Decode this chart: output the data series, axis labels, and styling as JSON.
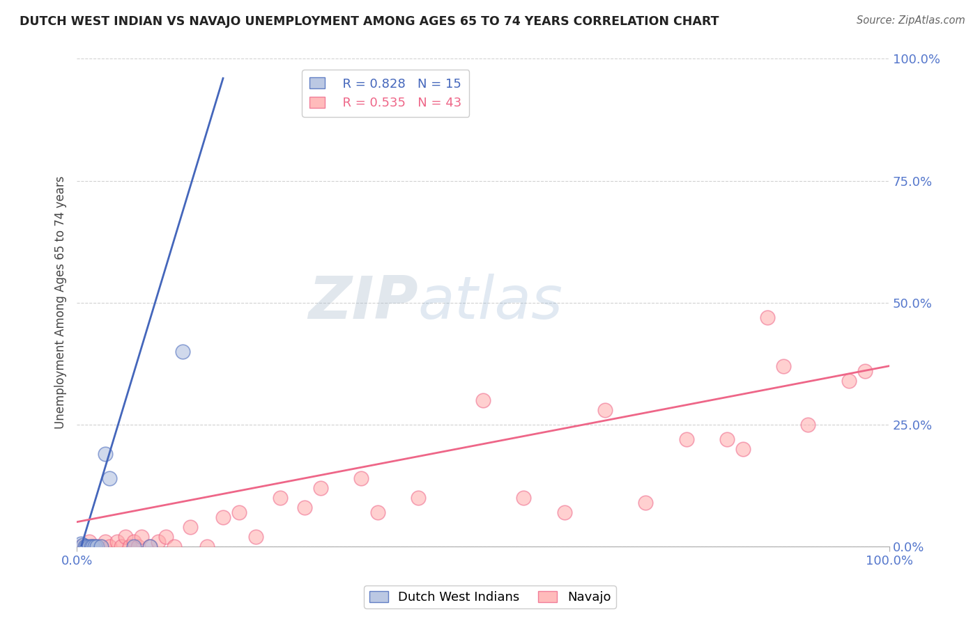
{
  "title": "DUTCH WEST INDIAN VS NAVAJO UNEMPLOYMENT AMONG AGES 65 TO 74 YEARS CORRELATION CHART",
  "source": "Source: ZipAtlas.com",
  "ylabel": "Unemployment Among Ages 65 to 74 years",
  "y_ticks": [
    0.0,
    0.25,
    0.5,
    0.75,
    1.0
  ],
  "y_tick_labels": [
    "0.0%",
    "25.0%",
    "50.0%",
    "75.0%",
    "100.0%"
  ],
  "legend_blue_r": "R = 0.828",
  "legend_blue_n": "N = 15",
  "legend_pink_r": "R = 0.535",
  "legend_pink_n": "N = 43",
  "legend_label_blue": "Dutch West Indians",
  "legend_label_pink": "Navajo",
  "blue_scatter_color": "#AABBDD",
  "pink_scatter_color": "#FFAAAA",
  "blue_line_color": "#4466BB",
  "pink_line_color": "#EE6688",
  "tick_color": "#5577CC",
  "watermark_zip": "ZIP",
  "watermark_atlas": "atlas",
  "background_color": "#FFFFFF",
  "grid_color": "#CCCCCC",
  "figsize": [
    14.06,
    8.92
  ],
  "dpi": 100,
  "dutch_west_indians_x": [
    0.005,
    0.008,
    0.01,
    0.012,
    0.015,
    0.018,
    0.02,
    0.022,
    0.025,
    0.03,
    0.035,
    0.04,
    0.07,
    0.09,
    0.13
  ],
  "dutch_west_indians_y": [
    0.005,
    0.003,
    0.0,
    0.0,
    0.0,
    0.0,
    0.0,
    0.0,
    0.0,
    0.0,
    0.19,
    0.14,
    0.0,
    0.0,
    0.4
  ],
  "navajo_x": [
    0.005,
    0.01,
    0.015,
    0.02,
    0.025,
    0.03,
    0.035,
    0.04,
    0.05,
    0.055,
    0.06,
    0.065,
    0.07,
    0.075,
    0.08,
    0.09,
    0.1,
    0.11,
    0.12,
    0.14,
    0.16,
    0.18,
    0.2,
    0.22,
    0.25,
    0.28,
    0.3,
    0.35,
    0.37,
    0.42,
    0.5,
    0.55,
    0.6,
    0.65,
    0.7,
    0.75,
    0.8,
    0.82,
    0.85,
    0.87,
    0.9,
    0.95,
    0.97
  ],
  "navajo_y": [
    0.0,
    0.0,
    0.01,
    0.0,
    0.0,
    0.0,
    0.01,
    0.0,
    0.01,
    0.0,
    0.02,
    0.0,
    0.01,
    0.0,
    0.02,
    0.0,
    0.01,
    0.02,
    0.0,
    0.04,
    0.0,
    0.06,
    0.07,
    0.02,
    0.1,
    0.08,
    0.12,
    0.14,
    0.07,
    0.1,
    0.3,
    0.1,
    0.07,
    0.28,
    0.09,
    0.22,
    0.22,
    0.2,
    0.47,
    0.37,
    0.25,
    0.34,
    0.36
  ],
  "pink_regr_slope": 0.32,
  "pink_regr_intercept": 0.05,
  "blue_regr_slope": 5.5,
  "blue_regr_intercept": -0.03
}
